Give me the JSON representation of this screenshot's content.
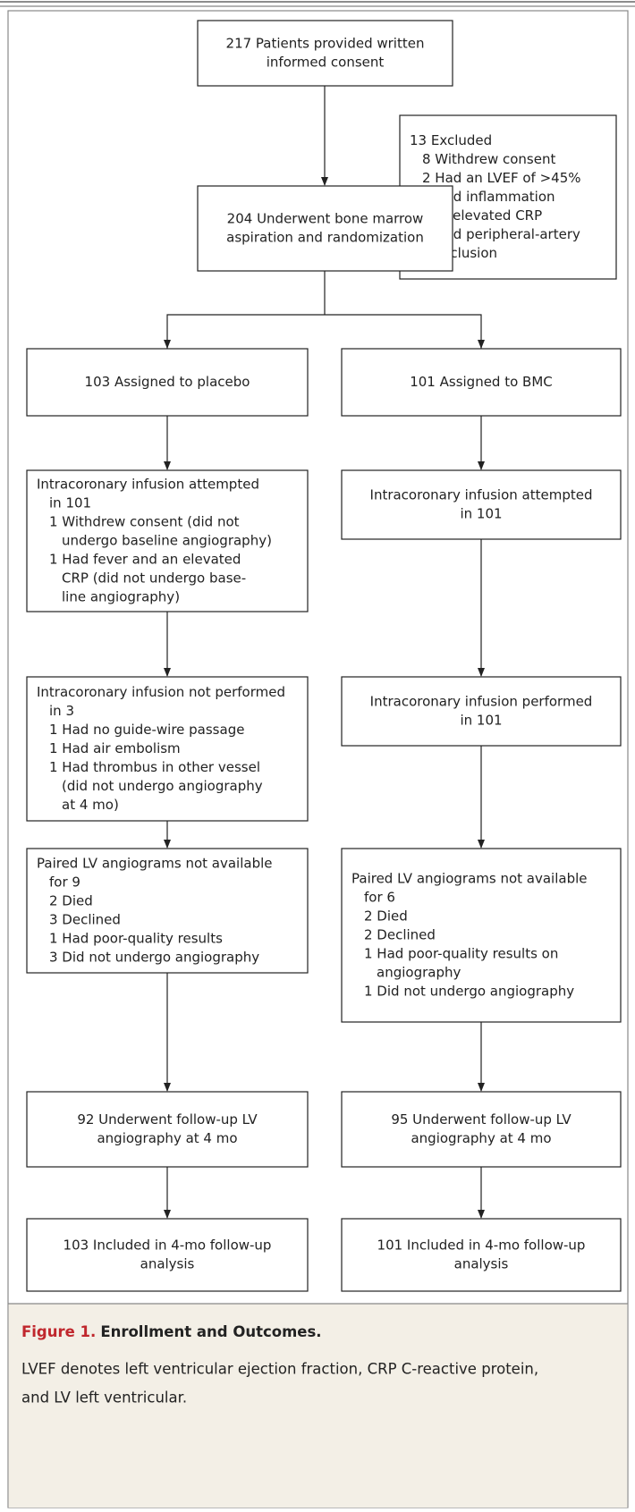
{
  "nodes": [
    {
      "lines": [
        "217 Patients provided written",
        "informed consent"
      ]
    },
    {
      "lines": [
        "13 Excluded",
        "8 Withdrew consent",
        "2 Had an LVEF of >45%",
        "2 Had inflammation",
        "or elevated CRP",
        "1 Had peripheral-artery",
        "occlusion"
      ]
    },
    {
      "lines": [
        "204 Underwent bone marrow",
        "aspiration and randomization"
      ]
    },
    {
      "lines": [
        "103 Assigned to placebo"
      ]
    },
    {
      "lines": [
        "101 Assigned to BMC"
      ]
    },
    {
      "lines": [
        "Intracoronary infusion attempted",
        "in 101",
        "1 Withdrew consent (did not",
        "undergo baseline angiography)",
        "1 Had fever and an elevated",
        "CRP (did not undergo base-",
        "line angiography)"
      ]
    },
    {
      "lines": [
        "Intracoronary infusion attempted",
        "in 101"
      ]
    },
    {
      "lines": [
        "Intracoronary infusion not performed",
        "in 3",
        "1 Had no guide-wire passage",
        "1 Had air embolism",
        "1 Had thrombus in other vessel",
        "(did not undergo angiography",
        "at 4 mo)"
      ]
    },
    {
      "lines": [
        "Intracoronary infusion performed",
        "in 101"
      ]
    },
    {
      "lines": [
        "Paired LV angiograms not available",
        "for 9",
        "2 Died",
        "3 Declined",
        "1 Had poor-quality results",
        "3 Did not undergo angiography"
      ]
    },
    {
      "lines": [
        "Paired LV angiograms not available",
        "for 6",
        "2 Died",
        "2 Declined",
        "1 Had poor-quality results on",
        "angiography",
        "1 Did not undergo angiography"
      ]
    },
    {
      "lines": [
        "92 Underwent follow-up LV",
        "angiography at 4 mo"
      ]
    },
    {
      "lines": [
        "95 Underwent follow-up LV",
        "angiography at 4 mo"
      ]
    },
    {
      "lines": [
        "103 Included in 4-mo follow-up",
        "analysis"
      ]
    },
    {
      "lines": [
        "101 Included in 4-mo follow-up",
        "analysis"
      ]
    }
  ],
  "caption": {
    "label": "Figure 1.",
    "title": "Enrollment and Outcomes.",
    "lines": [
      "LVEF denotes left ventricular ejection fraction, CRP C-reactive protein,",
      "and LV left ventricular."
    ]
  }
}
